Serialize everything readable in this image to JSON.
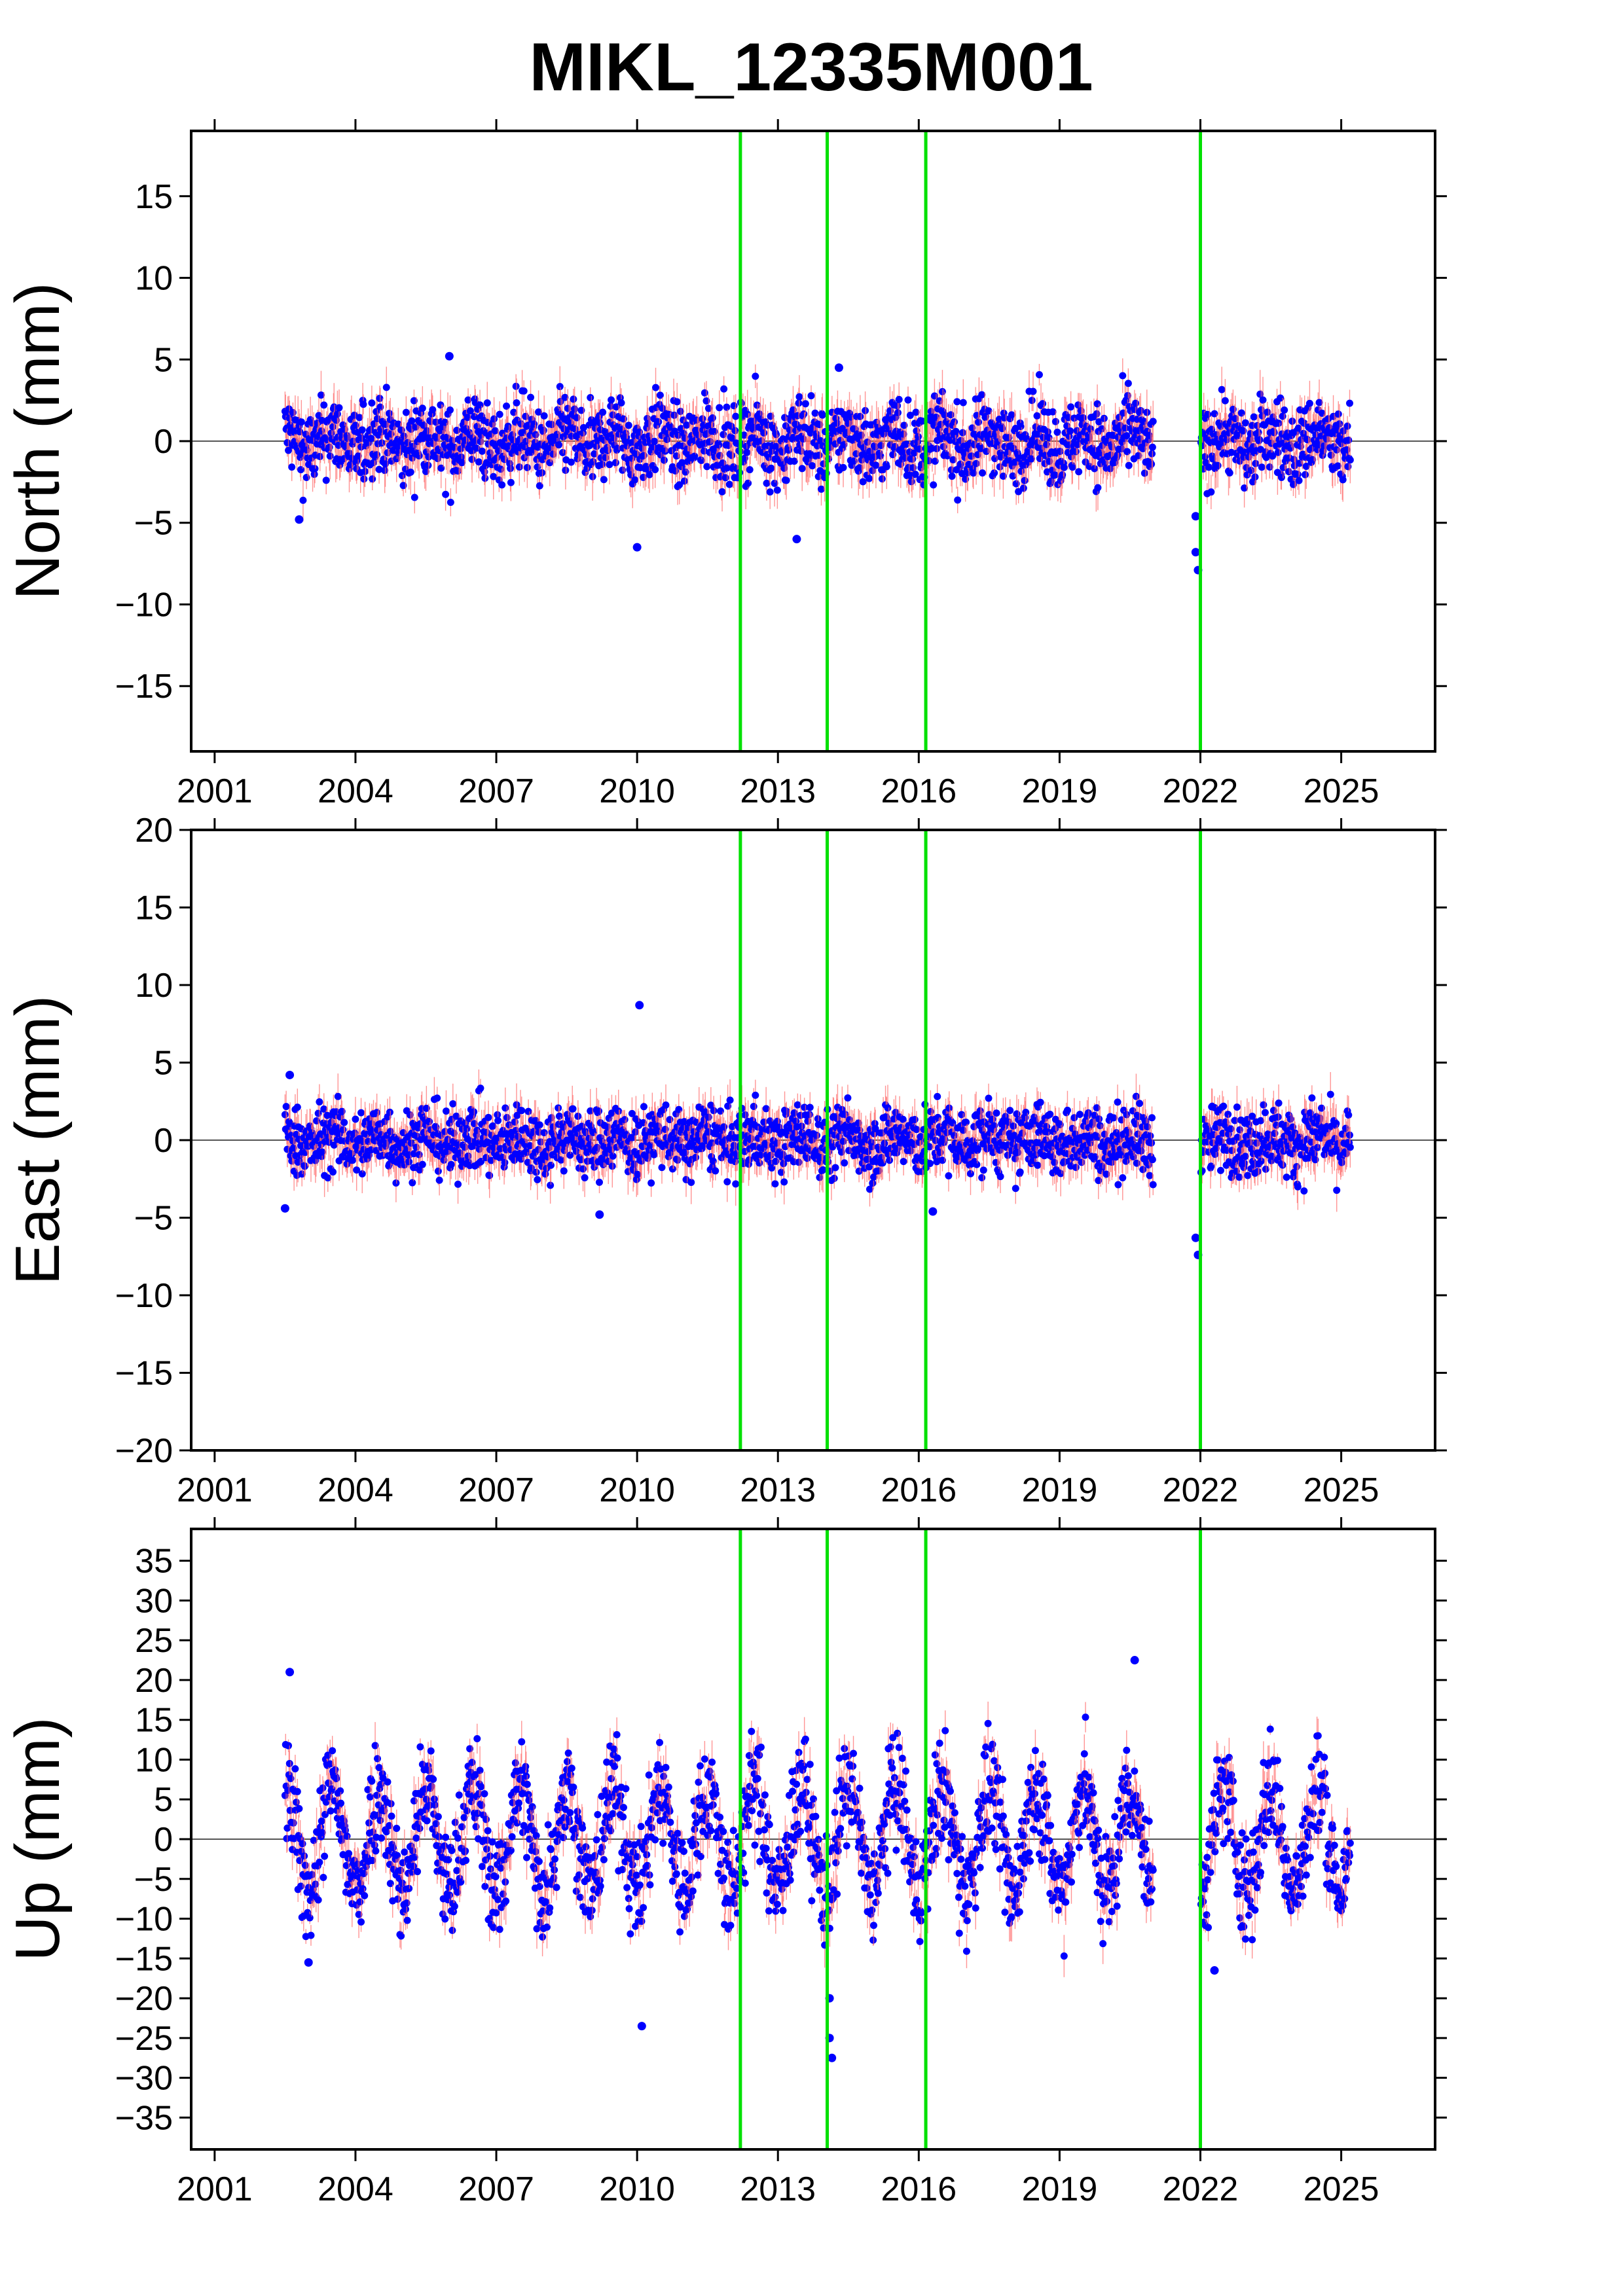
{
  "title": "MIKL_12335M001",
  "colors": {
    "point": "#0000ff",
    "error_bar": "#ff6666",
    "offset_line": "#00e000",
    "zero_line": "#555555",
    "frame": "#000000"
  },
  "x_ticks": [
    "2001",
    "2004",
    "2007",
    "2010",
    "2013",
    "2016",
    "2019",
    "2022",
    "2025"
  ],
  "chart_data": [
    {
      "type": "scatter",
      "ylabel": "North (mm)",
      "xlim": [
        2000.5,
        2027.0
      ],
      "ylim": [
        -19,
        19
      ],
      "y_ticks": [
        "15",
        "10",
        "5",
        "0",
        "−5",
        "−10",
        "−15"
      ],
      "offset_lines": [
        2012.2,
        2014.05,
        2016.15,
        2022.0
      ],
      "data_span": [
        2002.5,
        2025.2
      ],
      "gap": [
        2021.0,
        2022.0
      ],
      "outliers": [
        {
          "x": 2002.8,
          "y": -4.8
        },
        {
          "x": 2006.0,
          "y": 5.2
        },
        {
          "x": 2010.0,
          "y": -6.5
        },
        {
          "x": 2013.4,
          "y": -6.0
        },
        {
          "x": 2021.9,
          "y": -4.6
        },
        {
          "x": 2021.9,
          "y": -6.8
        },
        {
          "x": 2021.95,
          "y": -7.9
        },
        {
          "x": 2014.3,
          "y": 4.5
        }
      ]
    },
    {
      "type": "scatter",
      "ylabel": "East (mm)",
      "xlim": [
        2000.5,
        2027.0
      ],
      "ylim": [
        -20,
        20
      ],
      "y_ticks": [
        "20",
        "15",
        "10",
        "5",
        "0",
        "−5",
        "−10",
        "−15",
        "−20"
      ],
      "offset_lines": [
        2012.2,
        2014.05,
        2016.15,
        2022.0
      ],
      "data_span": [
        2002.5,
        2025.2
      ],
      "gap": [
        2021.0,
        2022.0
      ],
      "outliers": [
        {
          "x": 2010.05,
          "y": 8.7
        },
        {
          "x": 2002.6,
          "y": 4.2
        },
        {
          "x": 2002.5,
          "y": -4.4
        },
        {
          "x": 2021.9,
          "y": -6.3
        },
        {
          "x": 2021.95,
          "y": -7.4
        },
        {
          "x": 2016.3,
          "y": -4.6
        },
        {
          "x": 2009.2,
          "y": -4.8
        }
      ]
    },
    {
      "type": "scatter",
      "ylabel": "Up (mm)",
      "xlim": [
        2000.5,
        2027.0
      ],
      "ylim": [
        -39,
        39
      ],
      "y_ticks": [
        "35",
        "30",
        "25",
        "20",
        "15",
        "10",
        "5",
        "0",
        "−5",
        "−10",
        "−15",
        "−20",
        "−25",
        "−30",
        "−35"
      ],
      "offset_lines": [
        2012.2,
        2014.05,
        2016.15,
        2022.0
      ],
      "data_span": [
        2002.5,
        2025.2
      ],
      "gap": [
        2021.0,
        2022.0
      ],
      "outliers": [
        {
          "x": 2002.6,
          "y": 21.0
        },
        {
          "x": 2020.6,
          "y": 22.5
        },
        {
          "x": 2010.1,
          "y": -23.5
        },
        {
          "x": 2014.1,
          "y": -20.0
        },
        {
          "x": 2014.1,
          "y": -25.0
        },
        {
          "x": 2014.15,
          "y": -27.5
        },
        {
          "x": 2003.0,
          "y": -15.5
        },
        {
          "x": 2022.3,
          "y": -16.5
        }
      ]
    }
  ]
}
